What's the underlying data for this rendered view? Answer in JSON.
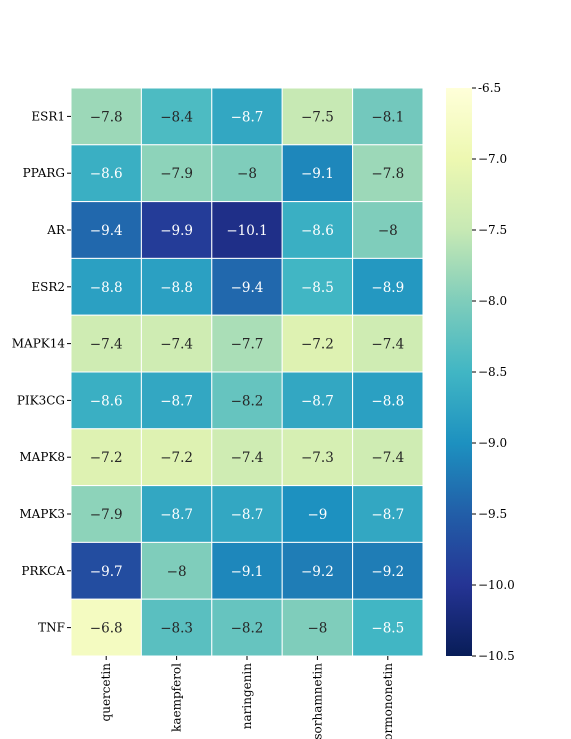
{
  "chart_data": {
    "type": "heatmap",
    "title": "",
    "xlabel": "",
    "ylabel": "",
    "rows": [
      "ESR1",
      "PPARG",
      "AR",
      "ESR2",
      "MAPK14",
      "PIK3CG",
      "MAPK8",
      "MAPK3",
      "PRKCA",
      "TNF"
    ],
    "columns": [
      "quercetin",
      "kaempferol",
      "naringenin",
      "isorhamnetin",
      "formononetin"
    ],
    "values": [
      [
        -7.8,
        -8.4,
        -8.7,
        -7.5,
        -8.1
      ],
      [
        -8.6,
        -7.9,
        -8,
        -9.1,
        -7.8
      ],
      [
        -9.4,
        -9.9,
        -10.1,
        -8.6,
        -8
      ],
      [
        -8.8,
        -8.8,
        -9.4,
        -8.5,
        -8.9
      ],
      [
        -7.4,
        -7.4,
        -7.7,
        -7.2,
        -7.4
      ],
      [
        -8.6,
        -8.7,
        -8.2,
        -8.7,
        -8.8
      ],
      [
        -7.2,
        -7.2,
        -7.4,
        -7.3,
        -7.4
      ],
      [
        -7.9,
        -8.7,
        -8.7,
        -9,
        -8.7
      ],
      [
        -9.7,
        -8,
        -9.1,
        -9.2,
        -9.2
      ],
      [
        -6.8,
        -8.3,
        -8.2,
        -8,
        -8.5
      ]
    ],
    "colorbar": {
      "range": [
        -10.5,
        -6.5
      ],
      "ticks": [
        -6.5,
        -7.0,
        -7.5,
        -8.0,
        -8.5,
        -9.0,
        -9.5,
        -10.0,
        -10.5
      ],
      "tick_labels": [
        "-6.5",
        "−7.0",
        "−7.5",
        "−8.0",
        "−8.5",
        "−9.0",
        "−9.5",
        "−10.0",
        "−10.5"
      ],
      "colormap": "YlGnBu",
      "colors_low_to_high": [
        "#081d58",
        "#253494",
        "#225ea8",
        "#1d91c0",
        "#41b6c4",
        "#7fcdbb",
        "#c7e9b4",
        "#edf8b1",
        "#ffffd9"
      ]
    },
    "grid_line_color": "#ffffff"
  }
}
